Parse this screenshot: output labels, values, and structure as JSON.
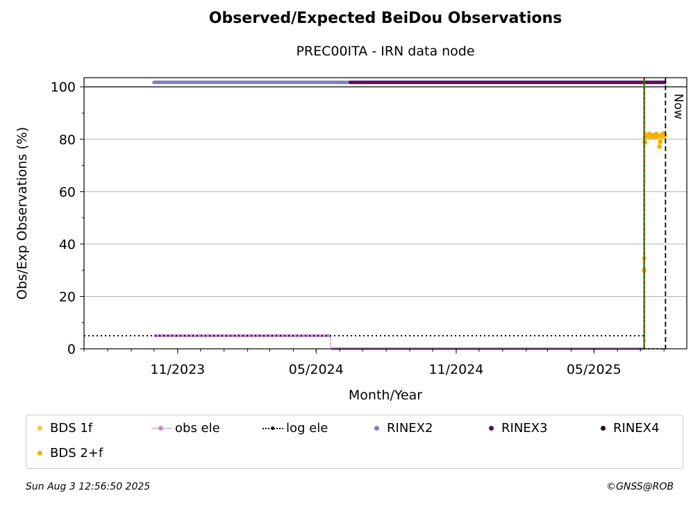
{
  "chart_data": {
    "type": "scatter",
    "title": "Observed/Expected BeiDou Observations",
    "subtitle": "PREC00ITA - IRN data node",
    "xlabel": "Month/Year",
    "ylabel": "Obs/Exp Observations (%)",
    "x_range": [
      "2023-07-01",
      "2025-08-31"
    ],
    "ylim": [
      0,
      103.5
    ],
    "y_ticks": [
      0,
      20,
      40,
      60,
      80,
      100
    ],
    "x_ticks": [
      {
        "date": "2023-11-01",
        "label": "11/2023"
      },
      {
        "date": "2024-05-01",
        "label": "05/2024"
      },
      {
        "date": "2024-11-01",
        "label": "11/2024"
      },
      {
        "date": "2025-05-01",
        "label": "05/2025"
      }
    ],
    "grid": "horizontal",
    "now_label": "Now",
    "now_date": "2025-08-03",
    "green_line_date": "2025-07-06",
    "red_line_date": "2025-07-06",
    "series": [
      {
        "name": "BDS 1f",
        "color": "#f5c842",
        "marker": "dot",
        "points": [
          [
            "2025-07-06",
            34.5
          ],
          [
            "2025-07-07",
            80.3
          ],
          [
            "2025-07-09",
            81.0
          ],
          [
            "2025-07-12",
            80.5
          ],
          [
            "2025-07-16",
            81.2
          ],
          [
            "2025-07-20",
            80.6
          ],
          [
            "2025-07-24",
            81.0
          ],
          [
            "2025-07-28",
            80.2
          ],
          [
            "2025-08-01",
            81.0
          ]
        ]
      },
      {
        "name": "BDS 2+f",
        "color": "#f2b200",
        "marker": "dot",
        "points": [
          [
            "2025-07-06",
            30.0
          ],
          [
            "2025-07-07",
            78.8
          ],
          [
            "2025-07-08",
            81.2
          ],
          [
            "2025-07-10",
            81.8
          ],
          [
            "2025-07-13",
            82.0
          ],
          [
            "2025-07-15",
            81.0
          ],
          [
            "2025-07-18",
            81.6
          ],
          [
            "2025-07-20",
            80.7
          ],
          [
            "2025-07-22",
            82.0
          ],
          [
            "2025-07-24",
            81.3
          ],
          [
            "2025-07-26",
            77.2
          ],
          [
            "2025-07-27",
            79.0
          ],
          [
            "2025-07-29",
            81.6
          ],
          [
            "2025-07-31",
            82.2
          ],
          [
            "2025-08-02",
            81.5
          ]
        ]
      },
      {
        "name": "obs ele",
        "color": "#c38bce",
        "marker": "line",
        "segments": [
          {
            "from": "2023-10-01",
            "to": "2024-05-20",
            "value": 5
          },
          {
            "from": "2024-05-21",
            "to": "2025-07-05",
            "value": 0
          }
        ]
      },
      {
        "name": "log ele",
        "color": "#000000",
        "marker": "dotted-line",
        "segments": [
          {
            "from": "2023-07-01",
            "to": "2025-07-06",
            "value": 5
          },
          {
            "from": "2025-07-06",
            "to": "2025-08-03",
            "value": 0
          }
        ]
      },
      {
        "name": "RINEX2",
        "color": "#7f7fbf",
        "marker": "dot",
        "segments": [
          {
            "from": "2023-10-01",
            "to": "2024-06-15",
            "value": 101.7
          }
        ]
      },
      {
        "name": "RINEX3",
        "color": "#5c0a5c",
        "marker": "dot",
        "segments": [
          {
            "from": "2024-06-15",
            "to": "2025-08-02",
            "value": 101.7
          }
        ]
      },
      {
        "name": "RINEX4",
        "color": "#1a0a1a",
        "marker": "dot",
        "segments": []
      }
    ]
  },
  "legend": [
    {
      "label": "BDS 1f",
      "color": "#f5c842",
      "marker": "dot"
    },
    {
      "label": "obs ele",
      "color": "#c38bce",
      "marker": "line"
    },
    {
      "label": "log ele",
      "color": "#000000",
      "marker": "dotted-line"
    },
    {
      "label": "RINEX2",
      "color": "#7f7fbf",
      "marker": "dot"
    },
    {
      "label": "RINEX3",
      "color": "#5c0a5c",
      "marker": "dot"
    },
    {
      "label": "RINEX4",
      "color": "#1a0a1a",
      "marker": "dot"
    },
    {
      "label": "BDS 2+f",
      "color": "#f2b200",
      "marker": "dot"
    }
  ],
  "footer": {
    "timestamp": "Sun Aug  3 12:56:50 2025",
    "copyright": "©GNSS@ROB"
  }
}
